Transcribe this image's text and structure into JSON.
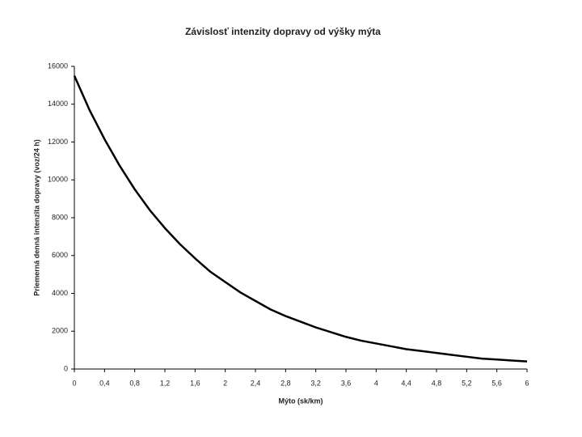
{
  "chart_data": {
    "type": "line",
    "title": "Závislosť intenzity dopravy od výšky mýta",
    "x_label": "Mýto (sk/km)",
    "y_label": "Priemerná denná intenzita dopravy (voz/24 h)",
    "x": [
      0,
      0.2,
      0.4,
      0.6,
      0.8,
      1,
      1.2,
      1.4,
      1.6,
      1.8,
      2,
      2.2,
      2.4,
      2.6,
      2.8,
      3,
      3.2,
      3.4,
      3.6,
      3.8,
      4,
      4.2,
      4.4,
      4.6,
      4.8,
      5,
      5.2,
      5.4,
      5.6,
      5.8,
      6
    ],
    "values": [
      15500,
      13700,
      12150,
      10750,
      9500,
      8400,
      7450,
      6600,
      5850,
      5150,
      4600,
      4050,
      3600,
      3150,
      2800,
      2500,
      2200,
      1950,
      1700,
      1500,
      1350,
      1200,
      1050,
      950,
      850,
      750,
      650,
      550,
      500,
      450,
      400
    ],
    "color": "#000000",
    "xlim": [
      0,
      6
    ],
    "xticks": [
      0,
      {
        "value": 0.4,
        "label": "0,4"
      },
      {
        "value": 0.8,
        "label": "0,8"
      },
      {
        "value": 1.2,
        "label": "1,2"
      },
      {
        "value": 1.6,
        "label": "1,6"
      },
      2,
      {
        "value": 2.4,
        "label": "2,4"
      },
      {
        "value": 2.8,
        "label": "2,8"
      },
      {
        "value": 3.2,
        "label": "3,2"
      },
      {
        "value": 3.6,
        "label": "3,6"
      },
      4,
      {
        "value": 4.4,
        "label": "4,4"
      },
      {
        "value": 4.8,
        "label": "4,8"
      },
      {
        "value": 5.2,
        "label": "5,2"
      },
      {
        "value": 5.6,
        "label": "5,6"
      },
      6
    ],
    "ylim": [
      0,
      16000
    ],
    "yticks": [
      0,
      2000,
      4000,
      6000,
      8000,
      10000,
      12000,
      14000,
      16000
    ],
    "grid": false
  }
}
